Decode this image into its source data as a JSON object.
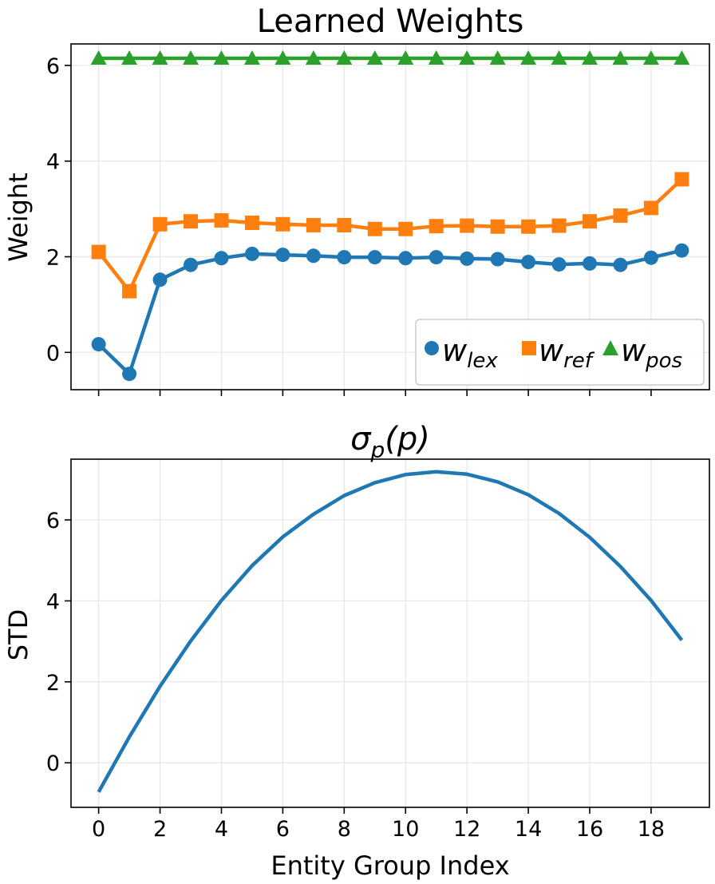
{
  "chart_data": [
    {
      "type": "line",
      "title": "Learned Weights",
      "xlabel": "",
      "ylabel": "Weight",
      "x": [
        0,
        1,
        2,
        3,
        4,
        5,
        6,
        7,
        8,
        9,
        10,
        11,
        12,
        13,
        14,
        15,
        16,
        17,
        18,
        19
      ],
      "xlim": [
        -0.9,
        19.9
      ],
      "ylim": [
        -0.78,
        6.45
      ],
      "yticks": [
        0,
        2,
        4,
        6
      ],
      "grid": true,
      "legend": "bottom-right",
      "series": [
        {
          "name": "w_lex",
          "legend_main": "w",
          "legend_sub": "lex",
          "color": "#1f77b4",
          "marker": "circle",
          "values": [
            0.17,
            -0.45,
            1.52,
            1.83,
            1.97,
            2.06,
            2.04,
            2.02,
            1.99,
            1.99,
            1.97,
            1.99,
            1.96,
            1.95,
            1.89,
            1.84,
            1.86,
            1.83,
            1.98,
            2.13
          ]
        },
        {
          "name": "w_ref",
          "legend_main": "w",
          "legend_sub": "ref",
          "color": "#ff7f0e",
          "marker": "square",
          "values": [
            2.1,
            1.28,
            2.68,
            2.74,
            2.76,
            2.71,
            2.68,
            2.66,
            2.66,
            2.58,
            2.58,
            2.64,
            2.65,
            2.63,
            2.63,
            2.65,
            2.74,
            2.86,
            3.02,
            3.62
          ]
        },
        {
          "name": "w_pos",
          "legend_main": "w",
          "legend_sub": "pos",
          "color": "#2ca02c",
          "marker": "triangle",
          "values": [
            6.15,
            6.15,
            6.15,
            6.15,
            6.15,
            6.15,
            6.15,
            6.15,
            6.15,
            6.15,
            6.15,
            6.15,
            6.15,
            6.15,
            6.15,
            6.15,
            6.15,
            6.15,
            6.15,
            6.15
          ]
        }
      ]
    },
    {
      "type": "line",
      "title_main": "σ",
      "title_sub": "p",
      "title_arg": "(p)",
      "xlabel": "Entity Group Index",
      "ylabel": "STD",
      "x": [
        0,
        1,
        2,
        3,
        4,
        5,
        6,
        7,
        8,
        9,
        10,
        11,
        12,
        13,
        14,
        15,
        16,
        17,
        18,
        19
      ],
      "xlim": [
        -0.9,
        19.9
      ],
      "ylim": [
        -1.1,
        7.5
      ],
      "xticks": [
        0,
        2,
        4,
        6,
        8,
        10,
        12,
        14,
        16,
        18
      ],
      "yticks": [
        0,
        2,
        4,
        6
      ],
      "grid": true,
      "series": [
        {
          "name": "sigma_p",
          "color": "#1f77b4",
          "values": [
            -0.72,
            0.64,
            1.89,
            3.01,
            4.01,
            4.87,
            5.58,
            6.14,
            6.6,
            6.92,
            7.12,
            7.19,
            7.13,
            6.94,
            6.62,
            6.16,
            5.57,
            4.85,
            4.01,
            3.03
          ]
        }
      ]
    }
  ]
}
